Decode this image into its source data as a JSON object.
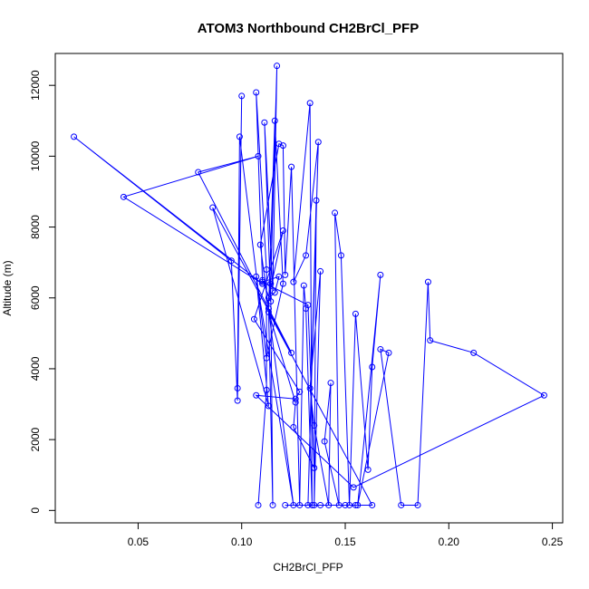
{
  "chart_data": {
    "type": "line",
    "title": "ATOM3 Northbound CH2BrCl_PFP",
    "xlabel": "CH2BrCl_PFP",
    "ylabel": "Altitude (m)",
    "xlim": [
      0.01,
      0.255
    ],
    "ylim": [
      -350,
      12900
    ],
    "xticks": [
      0.05,
      0.1,
      0.15,
      0.2,
      0.25
    ],
    "xtick_labels": [
      "0.05",
      "0.10",
      "0.15",
      "0.20",
      "0.25"
    ],
    "yticks": [
      0,
      2000,
      4000,
      6000,
      8000,
      10000,
      12000
    ],
    "ytick_labels": [
      "0",
      "2000",
      "4000",
      "6000",
      "8000",
      "10000",
      "12000"
    ],
    "grid": false,
    "series": [
      {
        "color": "#0000ff",
        "marker": "open-circle",
        "points": [
          [
            0.108,
            150
          ],
          [
            0.112,
            3400
          ],
          [
            0.112,
            6800
          ],
          [
            0.107,
            11800
          ],
          [
            0.11,
            6500
          ],
          [
            0.114,
            5900
          ],
          [
            0.111,
            10950
          ],
          [
            0.115,
            6200
          ],
          [
            0.117,
            12550
          ],
          [
            0.114,
            6400
          ],
          [
            0.115,
            150
          ],
          [
            0.113,
            5700
          ],
          [
            0.116,
            11000
          ],
          [
            0.12,
            6400
          ],
          [
            0.112,
            4300
          ],
          [
            0.099,
            10550
          ],
          [
            0.098,
            3450
          ],
          [
            0.1,
            11700
          ],
          [
            0.098,
            3100
          ],
          [
            0.095,
            7050
          ],
          [
            0.019,
            10550
          ],
          [
            0.11,
            6400
          ],
          [
            0.043,
            8850
          ],
          [
            0.108,
            10000
          ],
          [
            0.079,
            9550
          ],
          [
            0.124,
            4450
          ],
          [
            0.086,
            8550
          ],
          [
            0.113,
            2950
          ],
          [
            0.107,
            6600
          ],
          [
            0.125,
            150
          ],
          [
            0.109,
            7500
          ],
          [
            0.118,
            10350
          ],
          [
            0.12,
            10300
          ],
          [
            0.121,
            6650
          ],
          [
            0.124,
            9700
          ],
          [
            0.128,
            150
          ],
          [
            0.13,
            6350
          ],
          [
            0.131,
            5700
          ],
          [
            0.134,
            150
          ],
          [
            0.133,
            11500
          ],
          [
            0.125,
            6450
          ],
          [
            0.131,
            7200
          ],
          [
            0.137,
            10400
          ],
          [
            0.132,
            150
          ],
          [
            0.136,
            8750
          ],
          [
            0.135,
            150
          ],
          [
            0.138,
            6750
          ],
          [
            0.133,
            3450
          ],
          [
            0.135,
            2400
          ],
          [
            0.142,
            150
          ],
          [
            0.143,
            3600
          ],
          [
            0.14,
            1950
          ],
          [
            0.147,
            150
          ],
          [
            0.145,
            8400
          ],
          [
            0.148,
            7200
          ],
          [
            0.152,
            150
          ],
          [
            0.155,
            5550
          ],
          [
            0.161,
            1150
          ],
          [
            0.163,
            4050
          ],
          [
            0.167,
            6650
          ],
          [
            0.156,
            150
          ],
          [
            0.171,
            4450
          ],
          [
            0.167,
            4550
          ],
          [
            0.177,
            150
          ],
          [
            0.185,
            150
          ],
          [
            0.19,
            6450
          ],
          [
            0.191,
            4800
          ],
          [
            0.212,
            4450
          ],
          [
            0.246,
            3250
          ],
          [
            0.154,
            650
          ],
          [
            0.107,
            3250
          ],
          [
            0.126,
            3150
          ],
          [
            0.128,
            3350
          ],
          [
            0.106,
            5400
          ],
          [
            0.12,
            7900
          ],
          [
            0.113,
            6000
          ],
          [
            0.116,
            6150
          ],
          [
            0.118,
            6600
          ],
          [
            0.11,
            6450
          ],
          [
            0.132,
            5800
          ],
          [
            0.135,
            1200
          ],
          [
            0.125,
            2350
          ],
          [
            0.126,
            3050
          ],
          [
            0.113,
            5600
          ],
          [
            0.163,
            150
          ],
          [
            0.15,
            150
          ],
          [
            0.155,
            150
          ],
          [
            0.138,
            150
          ],
          [
            0.121,
            150
          ]
        ]
      }
    ]
  }
}
